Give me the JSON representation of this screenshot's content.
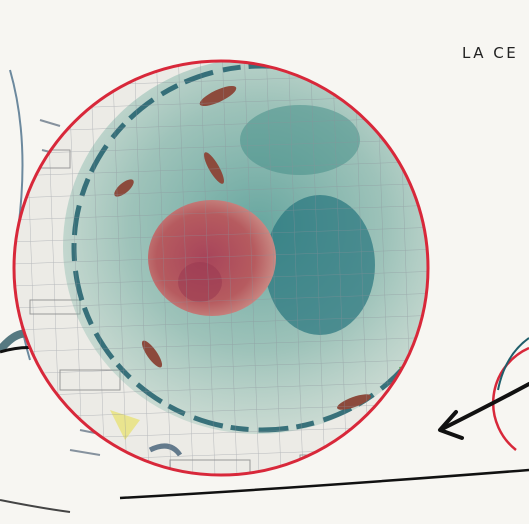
{
  "page": {
    "title_fragment": "LA CE",
    "colors": {
      "circle_outline": "#d8283a",
      "grid": "#8a8f99",
      "cytoplasm": "#5e9a90",
      "nucleus": "#b0525b",
      "membrane": "#1f5e6b",
      "mitochondria": "#8c4a3c",
      "arrow": "#111111"
    },
    "icons": [
      "cell-drawing",
      "nucleus",
      "mitochondria",
      "arrow"
    ]
  }
}
